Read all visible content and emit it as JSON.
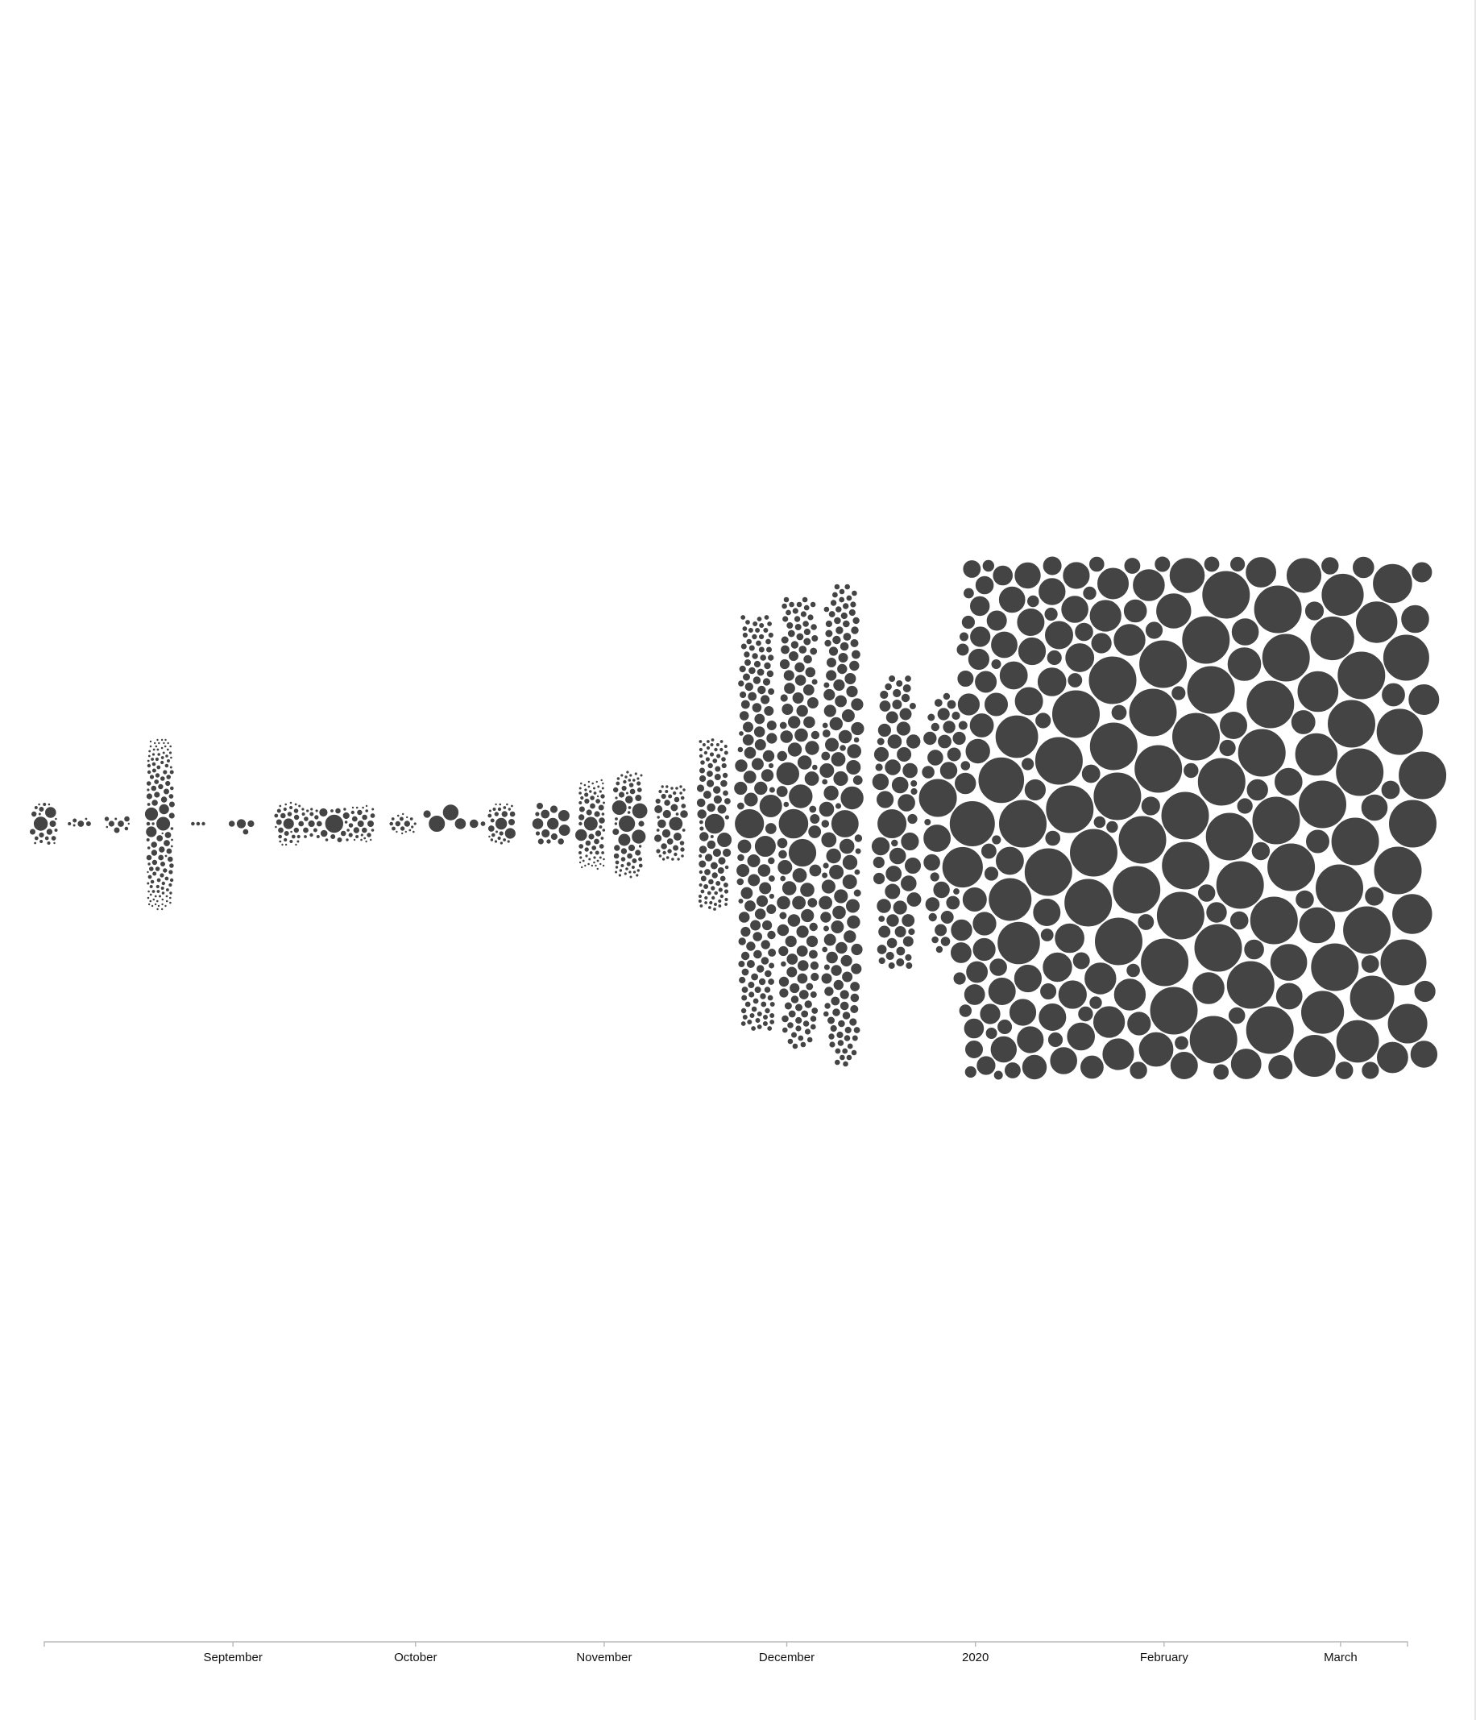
{
  "chart_data": {
    "type": "scatter",
    "subtype": "beeswarm",
    "title": "",
    "xlabel": "",
    "ylabel": "",
    "x_axis": {
      "kind": "date",
      "domain": [
        "2019-08-01",
        "2020-03-12"
      ],
      "ticks": [
        {
          "date": "2019-09-01",
          "label": "September"
        },
        {
          "date": "2019-10-01",
          "label": "October"
        },
        {
          "date": "2019-11-01",
          "label": "November"
        },
        {
          "date": "2019-12-01",
          "label": "December"
        },
        {
          "date": "2020-01-01",
          "label": "2020"
        },
        {
          "date": "2020-02-01",
          "label": "February"
        },
        {
          "date": "2020-03-01",
          "label": "March"
        }
      ]
    },
    "y_axis": "none",
    "grid": false,
    "legend": "none",
    "colors": {
      "dot": "#444444",
      "dot_stroke": "#ffffff",
      "axis": "#b8b8b8",
      "label": "#111111"
    },
    "clusters": [
      {
        "date": "2019-08-01",
        "count": 22,
        "size": 1
      },
      {
        "date": "2019-08-07",
        "count": 6,
        "size": 1
      },
      {
        "date": "2019-08-13",
        "count": 9,
        "size": 1
      },
      {
        "date": "2019-08-20",
        "count": 130,
        "size": 1
      },
      {
        "date": "2019-08-27",
        "count": 3,
        "size": 1.6
      },
      {
        "date": "2019-09-03",
        "count": 4,
        "size": 2
      },
      {
        "date": "2019-09-10",
        "count": 30,
        "size": 1
      },
      {
        "date": "2019-09-14",
        "count": 16,
        "size": 1.2
      },
      {
        "date": "2019-09-18",
        "count": 14,
        "size": 1.3
      },
      {
        "date": "2019-09-22",
        "count": 26,
        "size": 1
      },
      {
        "date": "2019-09-29",
        "count": 18,
        "size": 1
      },
      {
        "date": "2019-10-06",
        "count": 4,
        "size": 3
      },
      {
        "date": "2019-10-10",
        "count": 2,
        "size": 2
      },
      {
        "date": "2019-10-15",
        "count": 28,
        "size": 1
      },
      {
        "date": "2019-10-23",
        "count": 14,
        "size": 1.8
      },
      {
        "date": "2019-10-30",
        "count": 70,
        "size": 1
      },
      {
        "date": "2019-11-05",
        "count": 60,
        "size": 1.2
      },
      {
        "date": "2019-11-12",
        "count": 45,
        "size": 1.3
      },
      {
        "date": "2019-11-19",
        "count": 90,
        "size": 1.4
      },
      {
        "date": "2019-11-26",
        "count": 140,
        "size": 2
      },
      {
        "date": "2019-12-03",
        "count": 120,
        "size": 2.2
      },
      {
        "date": "2019-12-10",
        "count": 130,
        "size": 2.2
      },
      {
        "date": "2019-12-19",
        "count": 60,
        "size": 2.6
      },
      {
        "date": "2019-12-27",
        "count": 30,
        "size": 2.6
      },
      {
        "date": "2020-01-02",
        "count": 70,
        "size": 3.5
      },
      {
        "date": "2020-01-09",
        "count": 150,
        "size": 4
      },
      {
        "date": "2020-01-17",
        "count": 200,
        "size": 4.2
      },
      {
        "date": "2020-01-25",
        "count": 210,
        "size": 4.5
      },
      {
        "date": "2020-02-02",
        "count": 210,
        "size": 5
      },
      {
        "date": "2020-02-09",
        "count": 210,
        "size": 5.2
      },
      {
        "date": "2020-02-17",
        "count": 200,
        "size": 5.6
      },
      {
        "date": "2020-02-24",
        "count": 170,
        "size": 6
      },
      {
        "date": "2020-03-03",
        "count": 110,
        "size": 6.5
      },
      {
        "date": "2020-03-09",
        "count": 40,
        "size": 7
      }
    ]
  }
}
